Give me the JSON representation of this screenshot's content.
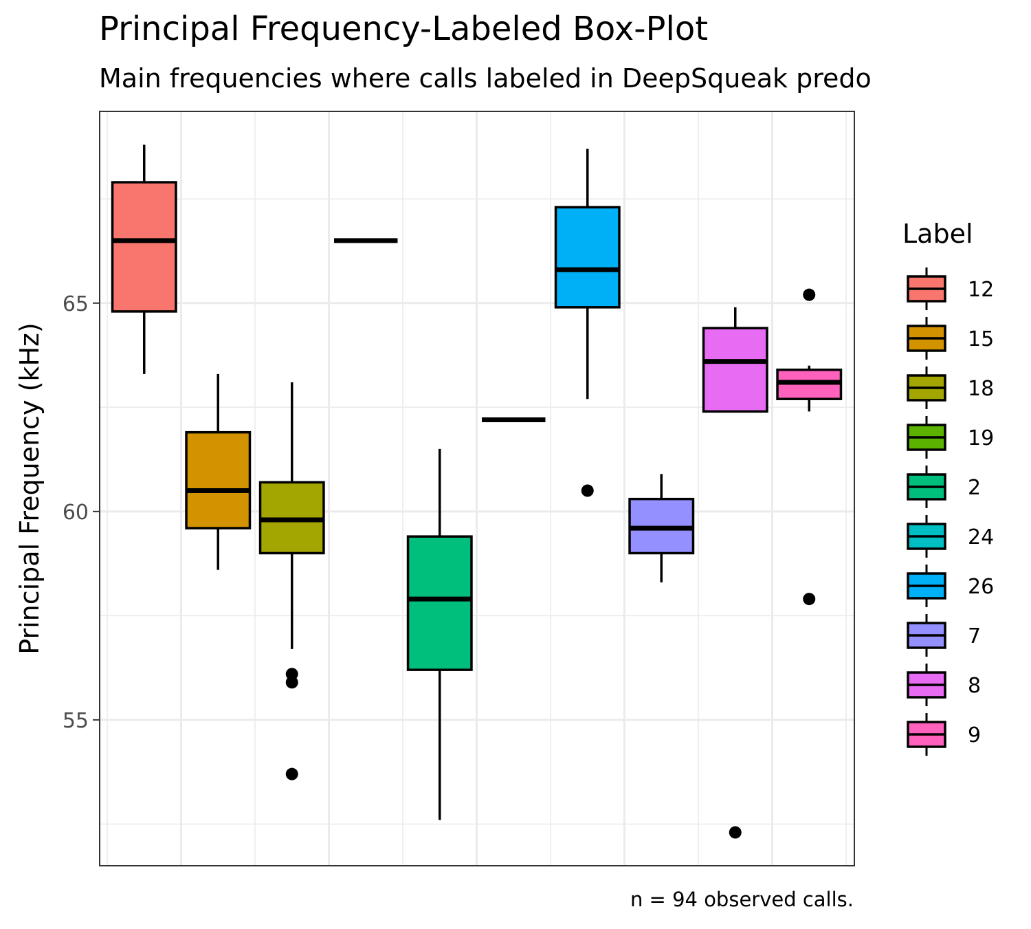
{
  "chart_data": {
    "type": "box",
    "title": "Principal Frequency-Labeled Box-Plot",
    "subtitle": "Main frequencies where calls labeled in DeepSqueak predo",
    "caption": "n = 94 observed calls.",
    "xlabel": "",
    "ylabel": "Principal Frequency (kHz)",
    "ylim": [
      51.5,
      69.6
    ],
    "yticks": [
      55,
      60,
      65
    ],
    "ytick_labels": [
      "55",
      "60",
      "65"
    ],
    "grid": true,
    "legend": {
      "title": "Label",
      "position": "right"
    },
    "series": [
      {
        "name": "12",
        "color": "#F8766D",
        "whisker_low": 63.3,
        "q1": 64.8,
        "median": 66.5,
        "q3": 67.9,
        "whisker_high": 68.8,
        "outliers": []
      },
      {
        "name": "15",
        "color": "#D39200",
        "whisker_low": 58.6,
        "q1": 59.6,
        "median": 60.5,
        "q3": 61.9,
        "whisker_high": 63.3,
        "outliers": []
      },
      {
        "name": "18",
        "color": "#A3A500",
        "whisker_low": 56.7,
        "q1": 59.0,
        "median": 59.8,
        "q3": 60.7,
        "whisker_high": 63.1,
        "outliers": [
          56.1,
          55.9,
          53.7
        ]
      },
      {
        "name": "19",
        "color": "#5BB300",
        "whisker_low": 66.5,
        "q1": 66.5,
        "median": 66.5,
        "q3": 66.5,
        "whisker_high": 66.5,
        "outliers": []
      },
      {
        "name": "2",
        "color": "#00BF7D",
        "whisker_low": 52.6,
        "q1": 56.2,
        "median": 57.9,
        "q3": 59.4,
        "whisker_high": 61.5,
        "outliers": []
      },
      {
        "name": "24",
        "color": "#00BFC4",
        "whisker_low": 62.2,
        "q1": 62.2,
        "median": 62.2,
        "q3": 62.2,
        "whisker_high": 62.2,
        "outliers": []
      },
      {
        "name": "26",
        "color": "#00B0F6",
        "whisker_low": 62.7,
        "q1": 64.9,
        "median": 65.8,
        "q3": 67.3,
        "whisker_high": 68.7,
        "outliers": [
          60.5
        ]
      },
      {
        "name": "7",
        "color": "#9590FF",
        "whisker_low": 58.3,
        "q1": 59.0,
        "median": 59.6,
        "q3": 60.3,
        "whisker_high": 60.9,
        "outliers": []
      },
      {
        "name": "8",
        "color": "#E76BF3",
        "whisker_low": 62.4,
        "q1": 62.4,
        "median": 63.6,
        "q3": 64.4,
        "whisker_high": 64.9,
        "outliers": [
          52.3
        ]
      },
      {
        "name": "9",
        "color": "#FF62BC",
        "whisker_low": 62.4,
        "q1": 62.7,
        "median": 63.1,
        "q3": 63.4,
        "whisker_high": 63.5,
        "outliers": [
          65.2,
          57.9
        ]
      }
    ]
  }
}
